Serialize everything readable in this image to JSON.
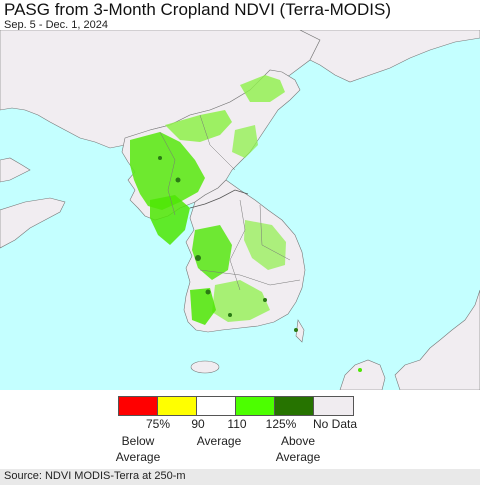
{
  "header": {
    "title": "PASG from 3-Month Cropland NDVI (Terra-MODIS)",
    "subtitle": "Sep. 5 - Dec. 1, 2024"
  },
  "map": {
    "colors": {
      "sea": "#c4ffff",
      "land": "#f1edf1",
      "border": "#666666",
      "crop_green": "#4de604",
      "crop_lightgreen": "#8ef04a",
      "crop_darkgreen": "#2a7a14"
    }
  },
  "legend": {
    "colors": [
      "#ff0000",
      "#ffff00",
      "#ffffff",
      "#4cff00",
      "#267300",
      "#f0ecf0"
    ],
    "ticks": [
      "75%",
      "90",
      "110",
      "125%"
    ],
    "no_data": "No Data",
    "below_label": "Below\nAverage",
    "average_label": "Average",
    "above_label": "Above\nAverage"
  },
  "footer": {
    "source": "Source: NDVI MODIS-Terra at 250-m"
  }
}
